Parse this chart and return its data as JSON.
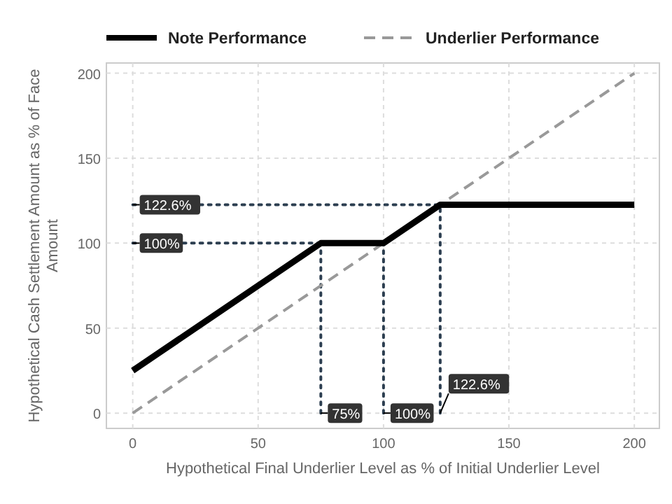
{
  "chart_data": {
    "type": "line",
    "xlabel": "Hypothetical Final Underlier Level as % of Initial Underlier Level",
    "ylabel": "Hypothetical Cash Settlement Amount as % of Face Amount",
    "xlim": [
      -10.5,
      210
    ],
    "ylim": [
      -9,
      206
    ],
    "xticks": [
      0,
      50,
      100,
      150,
      200
    ],
    "yticks": [
      0,
      50,
      100,
      150,
      200
    ],
    "grid": true,
    "legend": "top",
    "marker": "none",
    "series": [
      {
        "name": "Note Performance",
        "color": "#000000",
        "line_style": "solid",
        "x": [
          0,
          75,
          100,
          122.6,
          200
        ],
        "values": [
          25,
          100,
          100,
          122.6,
          122.6
        ]
      },
      {
        "name": "Underlier Performance",
        "color": "#999999",
        "line_style": "dashed",
        "x": [
          0,
          200
        ],
        "values": [
          0,
          200
        ]
      },
      {
        "color": "#2c3e50",
        "line_style": "dotted",
        "x": [
          0,
          122.6
        ],
        "values": [
          122.6,
          122.6
        ]
      },
      {
        "color": "#2c3e50",
        "line_style": "dotted",
        "x": [
          0,
          75
        ],
        "values": [
          100,
          100
        ]
      },
      {
        "color": "#2c3e50",
        "line_style": "dotted",
        "x": [
          75,
          75
        ],
        "values": [
          0,
          100
        ]
      },
      {
        "color": "#2c3e50",
        "line_style": "dotted",
        "x": [
          100,
          100
        ],
        "values": [
          0,
          100
        ]
      },
      {
        "color": "#2c3e50",
        "line_style": "dotted",
        "x": [
          122.6,
          122.6
        ],
        "values": [
          0,
          122.6
        ]
      }
    ],
    "annotations": [
      {
        "text": "122.6%",
        "x": 0,
        "y": 122.6
      },
      {
        "text": "100%",
        "x": 0,
        "y": 100
      },
      {
        "text": "75%",
        "x": 75,
        "y": 0
      },
      {
        "text": "100%",
        "x": 100,
        "y": 0
      },
      {
        "text": "122.6%",
        "x": 122.6,
        "y": 0
      }
    ]
  }
}
